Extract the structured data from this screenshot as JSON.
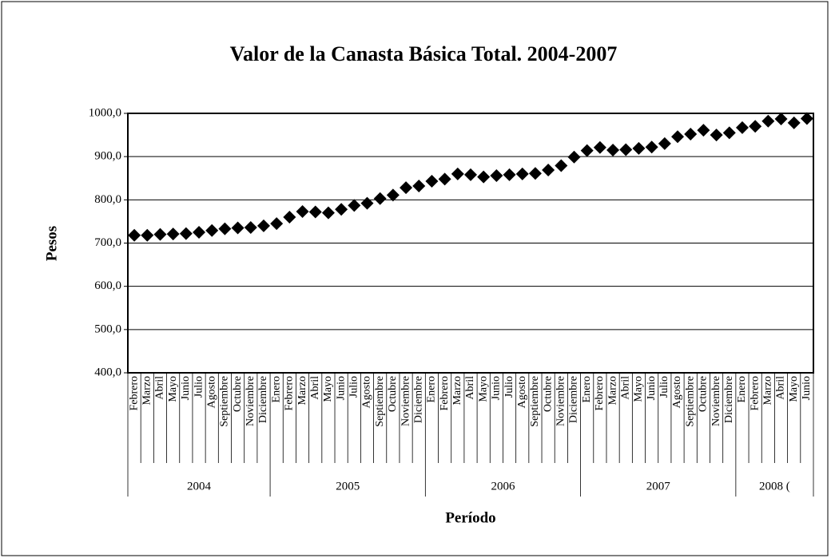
{
  "chart_data": {
    "type": "scatter",
    "title": "Valor de la Canasta Básica Total. 2004-2007",
    "y_label": "Pesos",
    "x_label": "Período",
    "categories": [
      "Febrero",
      "Marzo",
      "Abril",
      "Mayo",
      "Junio",
      "Julio",
      "Agosto",
      "Septiembre",
      "Octubre",
      "Noviembre",
      "Diciembre",
      "Enero",
      "Febrero",
      "Marzo",
      "Abril",
      "Mayo",
      "Junio",
      "Julio",
      "Agosto",
      "Septiembre",
      "Octubre",
      "Noviembre",
      "Diciembre",
      "Enero",
      "Febrero",
      "Marzo",
      "Abril",
      "Mayo",
      "Junio",
      "Julio",
      "Agosto",
      "Septiembre",
      "Octubre",
      "Noviembre",
      "Diciembre",
      "Enero",
      "Febrero",
      "Marzo",
      "Abril",
      "Mayo",
      "Junio",
      "Julio",
      "Agosto",
      "Septiembre",
      "Octubre",
      "Noviembre",
      "Diciembre",
      "Enero",
      "Febrero",
      "Marzo",
      "Abril",
      "Mayo",
      "Junio"
    ],
    "year_groups": [
      "2004",
      "2005",
      "2006",
      "2007",
      "2008 ("
    ],
    "values": [
      718,
      718,
      720,
      721,
      722,
      725,
      729,
      733,
      735,
      736,
      740,
      745,
      760,
      773,
      772,
      770,
      778,
      787,
      792,
      803,
      811,
      828,
      832,
      843,
      848,
      860,
      858,
      853,
      856,
      858,
      860,
      861,
      869,
      879,
      899,
      914,
      921,
      915,
      916,
      919,
      922,
      930,
      946,
      952,
      961,
      950,
      955,
      967,
      970,
      982,
      987,
      978,
      988
    ],
    "color": "#000000",
    "ylim": [
      400,
      1000
    ],
    "yticks": [
      {
        "value": 400,
        "label": "400,0"
      },
      {
        "value": 500,
        "label": "500,0"
      },
      {
        "value": 600,
        "label": "600,0"
      },
      {
        "value": 700,
        "label": "700,0"
      },
      {
        "value": 800,
        "label": "800,0"
      },
      {
        "value": 900,
        "label": "900,0"
      },
      {
        "value": 1000,
        "label": "1000,0"
      }
    ],
    "grid": true
  }
}
